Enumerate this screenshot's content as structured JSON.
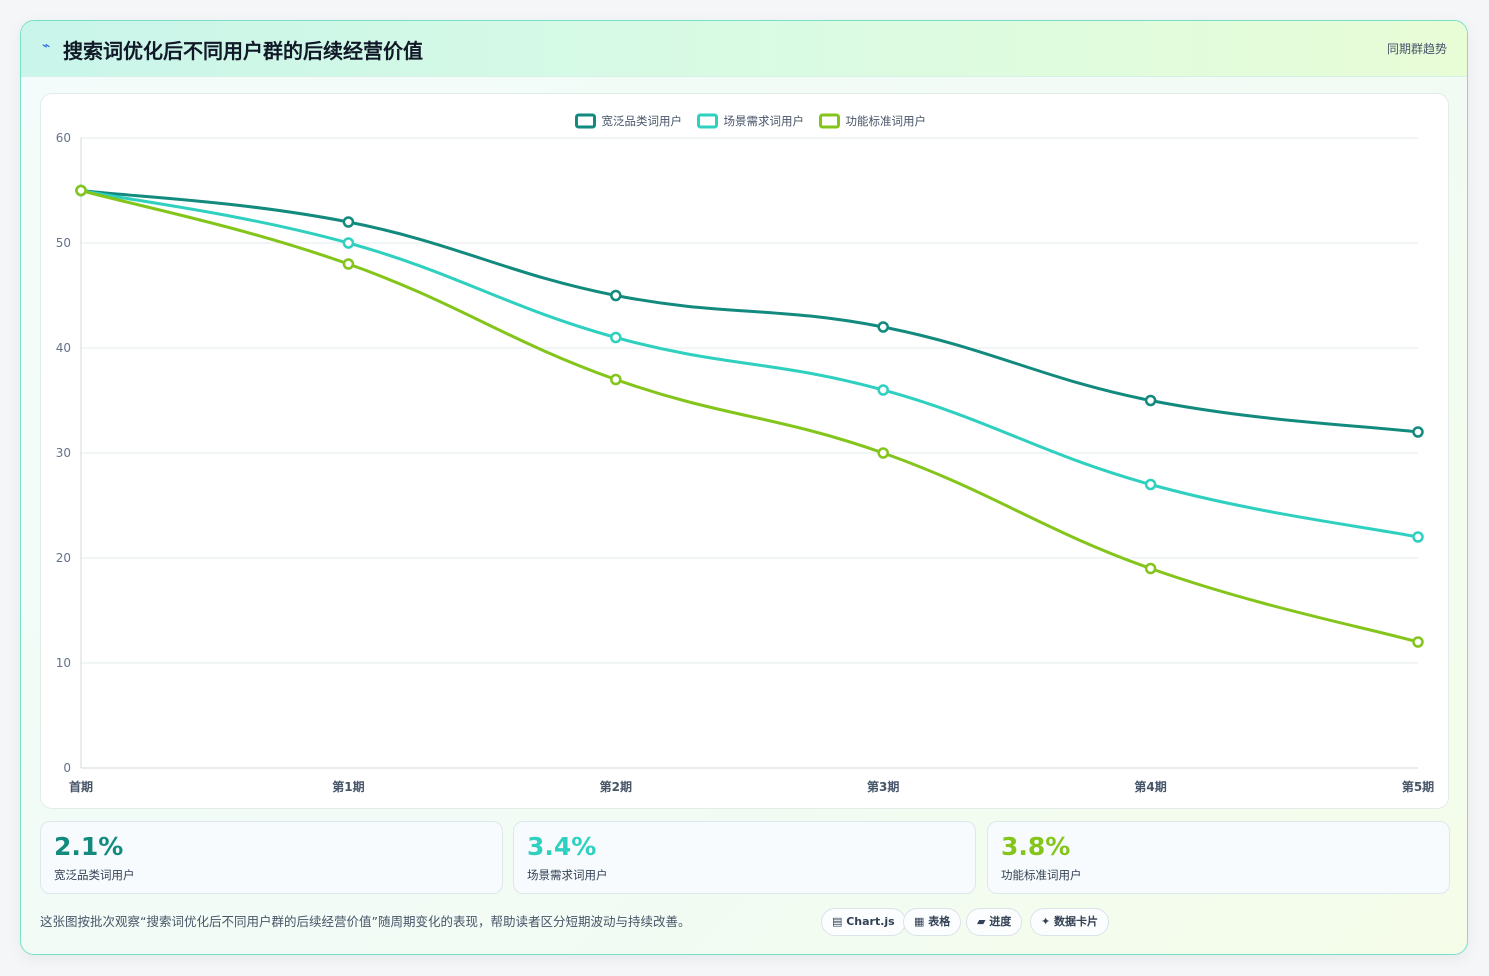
{
  "header": {
    "icon": "bolt-icon",
    "title": "搜索词优化后不同用户群的后续经营价值",
    "tag": "同期群趋势"
  },
  "chart_data": {
    "type": "line",
    "categories": [
      "首期",
      "第1期",
      "第2期",
      "第3期",
      "第4期",
      "第5期"
    ],
    "series": [
      {
        "name": "宽泛品类词用户",
        "color": "#128a7d",
        "values": [
          55,
          52,
          45,
          42,
          35,
          32
        ]
      },
      {
        "name": "场景需求词用户",
        "color": "#2fd0c0",
        "values": [
          55,
          50,
          41,
          36,
          27,
          22
        ]
      },
      {
        "name": "功能标准词用户",
        "color": "#84c51c",
        "values": [
          55,
          48,
          37,
          30,
          19,
          12
        ]
      }
    ],
    "ylim": [
      0,
      60
    ],
    "yticks": [
      0,
      10,
      20,
      30,
      40,
      50,
      60
    ],
    "legend": "top-center",
    "grid": true
  },
  "stats": [
    {
      "value": "2.1%",
      "label": "宽泛品类词用户",
      "color": "#128a7d"
    },
    {
      "value": "3.4%",
      "label": "场景需求词用户",
      "color": "#2fd0c0"
    },
    {
      "value": "3.8%",
      "label": "功能标准词用户",
      "color": "#84c51c"
    }
  ],
  "note": "这张图按批次观察“搜索词优化后不同用户群的后续经营价值”随周期变化的表现，帮助读者区分短期波动与持续改善。",
  "chips": [
    "▤ Chart.js",
    "▦ 表格",
    "▰ 进度",
    "✦ 数据卡片"
  ]
}
